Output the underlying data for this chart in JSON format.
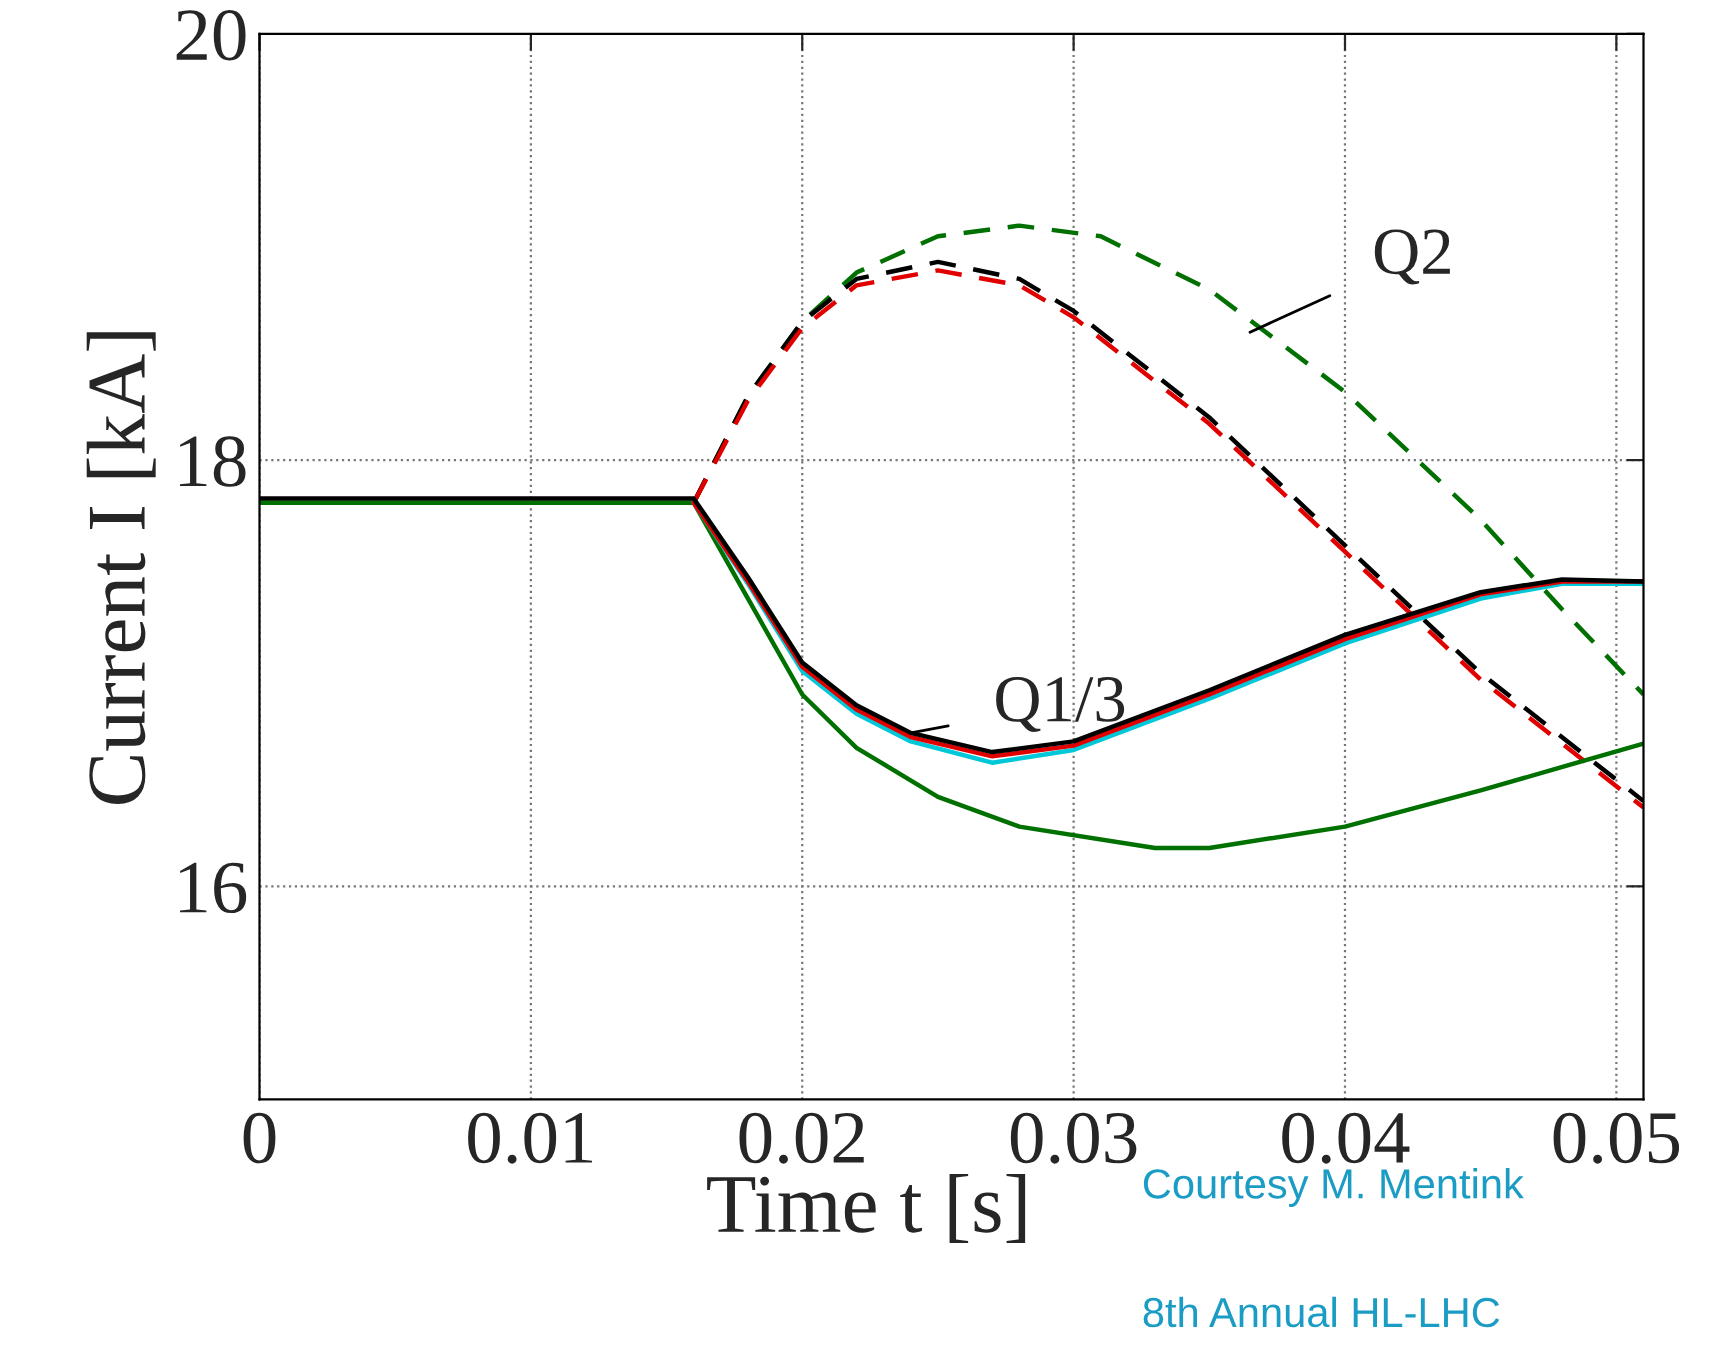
{
  "chart_data": {
    "type": "line",
    "xlabel": "Time t [s]",
    "ylabel": "Current I [kA]",
    "xlim": [
      0,
      0.051
    ],
    "ylim": [
      15,
      20
    ],
    "xticks": [
      0,
      0.01,
      0.02,
      0.03,
      0.04,
      0.05
    ],
    "yticks": [
      16,
      18,
      20
    ],
    "grid": true,
    "legend": false,
    "series": [
      {
        "color": "#007000",
        "line_style": "dashed",
        "x": [
          0.016,
          0.018,
          0.02,
          0.022,
          0.025,
          0.028,
          0.031,
          0.035,
          0.04,
          0.045,
          0.048,
          0.051
        ],
        "values": [
          17.8,
          18.3,
          18.65,
          18.88,
          19.05,
          19.1,
          19.05,
          18.8,
          18.32,
          17.72,
          17.3,
          16.9
        ]
      },
      {
        "color": "#000000",
        "line_style": "dashed",
        "x": [
          0.016,
          0.018,
          0.02,
          0.022,
          0.025,
          0.028,
          0.03,
          0.035,
          0.04,
          0.045,
          0.051
        ],
        "values": [
          17.8,
          18.3,
          18.65,
          18.85,
          18.93,
          18.85,
          18.7,
          18.2,
          17.6,
          17.0,
          16.4
        ]
      },
      {
        "color": "#e00000",
        "line_style": "dashed",
        "x": [
          0.016,
          0.018,
          0.02,
          0.022,
          0.025,
          0.028,
          0.03,
          0.035,
          0.04,
          0.045,
          0.051
        ],
        "values": [
          17.8,
          18.28,
          18.62,
          18.82,
          18.89,
          18.82,
          18.67,
          18.17,
          17.57,
          16.97,
          16.37
        ]
      },
      {
        "color": "#007000",
        "line_style": "solid",
        "x": [
          0,
          0.016,
          0.018,
          0.02,
          0.022,
          0.025,
          0.028,
          0.033,
          0.035,
          0.04,
          0.045,
          0.051
        ],
        "values": [
          17.8,
          17.8,
          17.35,
          16.9,
          16.65,
          16.42,
          16.28,
          16.18,
          16.18,
          16.28,
          16.45,
          16.67
        ]
      },
      {
        "color": "#00c8d8",
        "line_style": "solid",
        "x": [
          0.016,
          0.018,
          0.02,
          0.022,
          0.024,
          0.027,
          0.03,
          0.035,
          0.04,
          0.045,
          0.048,
          0.051
        ],
        "values": [
          17.8,
          17.42,
          17.01,
          16.81,
          16.68,
          16.58,
          16.64,
          16.88,
          17.14,
          17.35,
          17.42,
          17.42
        ]
      },
      {
        "color": "#e00000",
        "line_style": "solid",
        "x": [
          0.016,
          0.018,
          0.02,
          0.022,
          0.024,
          0.027,
          0.03,
          0.035,
          0.04,
          0.045,
          0.048,
          0.051
        ],
        "values": [
          17.8,
          17.43,
          17.03,
          16.83,
          16.7,
          16.61,
          16.66,
          16.9,
          17.16,
          17.37,
          17.43,
          17.43
        ]
      },
      {
        "color": "#000000",
        "line_style": "solid",
        "x": [
          0,
          0.016,
          0.018,
          0.02,
          0.022,
          0.024,
          0.027,
          0.03,
          0.035,
          0.04,
          0.045,
          0.048,
          0.051
        ],
        "values": [
          17.82,
          17.82,
          17.45,
          17.05,
          16.85,
          16.72,
          16.63,
          16.68,
          16.92,
          17.18,
          17.38,
          17.44,
          17.43
        ]
      }
    ],
    "annotations": [
      {
        "text": "Q2",
        "x": 0.0365,
        "y": 18.6
      },
      {
        "text": "Q1/3",
        "x": 0.024,
        "y": 16.72
      },
      "Courtesy M. Mentink",
      "8th Annual HL-LHC"
    ]
  }
}
